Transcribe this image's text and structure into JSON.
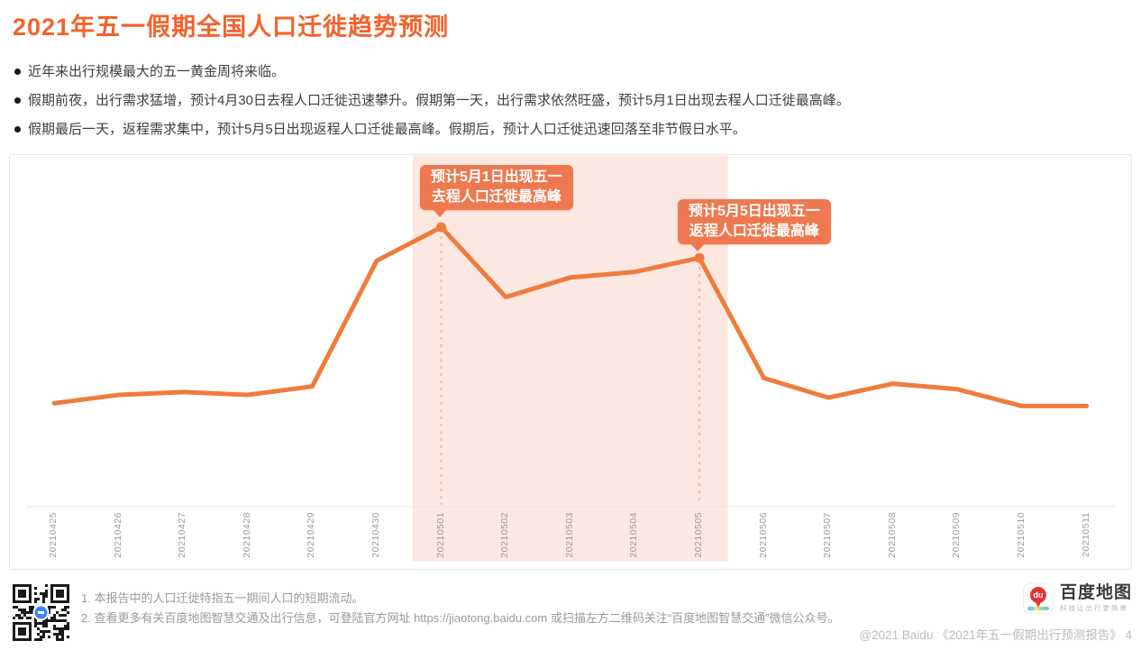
{
  "page": {
    "title": "2021年五一假期全国人口迁徙趋势预测"
  },
  "bullets": [
    "近年来出行规模最大的五一黄金周将来临。",
    "假期前夜，出行需求猛增，预计4月30日去程人口迁徙迅速攀升。假期第一天，出行需求依然旺盛，预计5月1日出现去程人口迁徙最高峰。",
    "假期最后一天，返程需求集中，预计5月5日出现返程人口迁徙最高峰。假期后，预计人口迁徙迅速回落至非节假日水平。"
  ],
  "chart_data": {
    "type": "line",
    "x": [
      "20210425",
      "20210426",
      "20210427",
      "20210428",
      "20210429",
      "20210430",
      "20210501",
      "20210502",
      "20210503",
      "20210504",
      "20210505",
      "20210506",
      "20210507",
      "20210508",
      "20210509",
      "20210510",
      "20210511"
    ],
    "values": [
      37,
      40,
      41,
      40,
      43,
      88,
      100,
      75,
      82,
      84,
      89,
      46,
      39,
      44,
      42,
      36,
      36
    ],
    "ylim": [
      0,
      100
    ],
    "grid": false,
    "y_axis_labels": false,
    "highlight_range": {
      "from": "20210501",
      "to": "20210505"
    },
    "annotations": [
      {
        "date": "20210501",
        "label_lines": [
          "预计5月1日出现五一",
          "去程人口迁徙最高峰"
        ]
      },
      {
        "date": "20210505",
        "label_lines": [
          "预计5月5日出现五一",
          "返程人口迁徙最高峰"
        ]
      }
    ],
    "colors": {
      "line": "#ef7b3d",
      "band": "#fce8e0",
      "callout": "#ee7950",
      "dashed": "#f6bb96",
      "axis": "#e4e4e4",
      "tick_label": "#9c9c9c",
      "title_accent": "#f2632c"
    }
  },
  "footer": {
    "notes": [
      "1.  本报告中的人口迁徙特指五一期间人口的短期流动。",
      "2.  查看更多有关百度地图智慧交通及出行信息，可登陆官方网址 https://jiaotong.baidu.com 或扫描左方二维码关注“百度地图智慧交通”微信公众号。"
    ],
    "logo": {
      "name": "百度地图",
      "tagline": "科技让出行更简单",
      "pin_text": "du"
    },
    "copyright": "@2021 Baidu  《2021年五一假期出行预测报告》 4"
  }
}
